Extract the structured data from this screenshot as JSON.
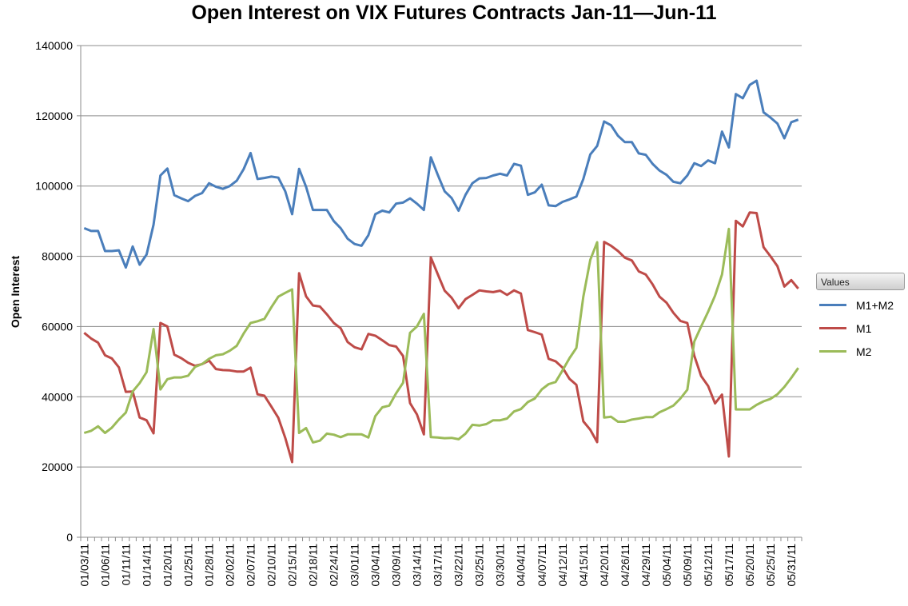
{
  "chart_data": {
    "type": "line",
    "title": "Open Interest on VIX Futures Contracts Jan-11—Jun-11",
    "xlabel": "",
    "ylabel": "Open Interest",
    "ylim": [
      0,
      140000
    ],
    "yticks": [
      "0",
      "20000",
      "40000",
      "60000",
      "80000",
      "100000",
      "120000",
      "140000"
    ],
    "x_tick_labels": [
      "01/03/11",
      "01/06/11",
      "01/11/11",
      "01/14/11",
      "01/20/11",
      "01/25/11",
      "01/28/11",
      "02/02/11",
      "02/07/11",
      "02/10/11",
      "02/15/11",
      "02/18/11",
      "02/24/11",
      "03/01/11",
      "03/04/11",
      "03/09/11",
      "03/14/11",
      "03/17/11",
      "03/22/11",
      "03/25/11",
      "03/30/11",
      "04/04/11",
      "04/07/11",
      "04/12/11",
      "04/15/11",
      "04/20/11",
      "04/26/11",
      "04/29/11",
      "05/04/11",
      "05/09/11",
      "05/12/11",
      "05/17/11",
      "05/20/11",
      "05/25/11",
      "05/31/11"
    ],
    "grid": true,
    "legend_title": "Values",
    "legend_position": "right",
    "series": [
      {
        "name": "M1+M2",
        "color": "#4a7ebb",
        "values": [
          88000,
          87200,
          87200,
          81500,
          81500,
          81700,
          76800,
          82800,
          77600,
          80500,
          89000,
          103000,
          105000,
          97400,
          96500,
          95700,
          97200,
          98000,
          100800,
          99800,
          99200,
          100000,
          101500,
          104800,
          109400,
          102000,
          102300,
          102700,
          102400,
          98500,
          92000,
          104900,
          99800,
          93200,
          93200,
          93200,
          90000,
          88000,
          85000,
          83500,
          83000,
          86000,
          92000,
          93000,
          92500,
          95000,
          95300,
          96500,
          95000,
          93200,
          108200,
          103200,
          98500,
          96600,
          93000,
          97500,
          100800,
          102200,
          102300,
          103000,
          103500,
          103000,
          106300,
          105800,
          97500,
          98200,
          100400,
          94500,
          94300,
          95500,
          96200,
          97000,
          102000,
          109000,
          111400,
          118400,
          117300,
          114300,
          112500,
          112500,
          109300,
          108900,
          106300,
          104400,
          103200,
          101200,
          100800,
          103000,
          106500,
          105700,
          107300,
          106500,
          115500,
          111000,
          126200,
          125000,
          128800,
          130000,
          121000,
          119500,
          117800,
          113600,
          118200,
          118900
        ]
      },
      {
        "name": "M1",
        "color": "#be4b48",
        "values": [
          58200,
          56600,
          55400,
          51800,
          50900,
          48400,
          41400,
          41500,
          34100,
          33300,
          29600,
          61000,
          60000,
          52000,
          51000,
          49700,
          48800,
          49300,
          50300,
          47900,
          47600,
          47500,
          47200,
          47200,
          48300,
          40700,
          40300,
          37200,
          34000,
          28300,
          21400,
          75200,
          68600,
          66000,
          65700,
          63500,
          61000,
          59500,
          55600,
          54100,
          53500,
          57900,
          57400,
          56100,
          54700,
          54300,
          51600,
          38200,
          35000,
          29300,
          79700,
          74900,
          70200,
          68200,
          65200,
          67800,
          69000,
          70300,
          70000,
          69800,
          70200,
          69000,
          70300,
          69400,
          59000,
          58400,
          57700,
          50800,
          50100,
          48300,
          45100,
          43400,
          33000,
          30600,
          27100,
          84100,
          83000,
          81500,
          79600,
          78800,
          75700,
          74800,
          72000,
          68500,
          66800,
          63900,
          61600,
          61000,
          51700,
          45900,
          43100,
          38100,
          40600,
          23000,
          90100,
          88500,
          92500,
          92300,
          82600,
          80000,
          77200,
          71400,
          73200,
          70800
        ]
      },
      {
        "name": "M2",
        "color": "#9bbb59",
        "values": [
          29700,
          30300,
          31600,
          29700,
          31200,
          33500,
          35500,
          41500,
          43900,
          47000,
          59300,
          42100,
          45000,
          45500,
          45500,
          46000,
          48500,
          49300,
          50800,
          51800,
          52100,
          53100,
          54500,
          58000,
          61000,
          61500,
          62200,
          65500,
          68500,
          69600,
          70600,
          29700,
          31100,
          27000,
          27500,
          29500,
          29200,
          28500,
          29300,
          29300,
          29300,
          28400,
          34500,
          37000,
          37500,
          41000,
          44000,
          58200,
          60000,
          63600,
          28500,
          28400,
          28200,
          28300,
          27900,
          29500,
          32000,
          31800,
          32200,
          33300,
          33300,
          33800,
          35800,
          36500,
          38500,
          39500,
          42100,
          43600,
          44200,
          47500,
          51000,
          53900,
          68500,
          79000,
          84000,
          34100,
          34300,
          32900,
          32900,
          33500,
          33800,
          34200,
          34200,
          35600,
          36500,
          37500,
          39500,
          42000,
          55700,
          60000,
          64200,
          68800,
          74800,
          87800,
          36400,
          36400,
          36400,
          37700,
          38700,
          39400,
          40700,
          42800,
          45400,
          48200
        ]
      }
    ]
  }
}
